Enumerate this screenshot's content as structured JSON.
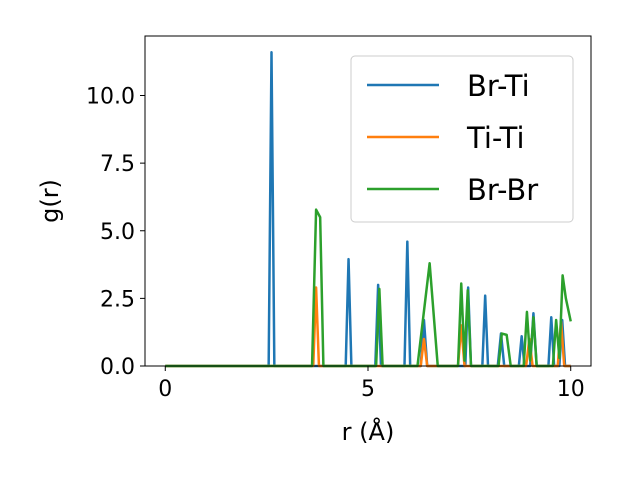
{
  "chart_data": {
    "type": "line",
    "title": "",
    "xlabel": "r (Å)",
    "ylabel": "g(r)",
    "xlim": [
      -0.5,
      10.5
    ],
    "ylim": [
      0,
      12.2
    ],
    "xticks": [
      0,
      5,
      10
    ],
    "xtick_labels": [
      "0",
      "5",
      "10"
    ],
    "yticks": [
      0.0,
      2.5,
      5.0,
      7.5,
      10.0
    ],
    "ytick_labels": [
      "0.0",
      "2.5",
      "5.0",
      "7.5",
      "10.0"
    ],
    "grid": false,
    "legend_position": "top-right",
    "series": [
      {
        "name": "Br-Ti",
        "color": "#1f77b4",
        "x": [
          0,
          2.55,
          2.62,
          2.69,
          4.45,
          4.52,
          4.59,
          5.18,
          5.25,
          5.32,
          5.9,
          5.97,
          6.04,
          6.3,
          6.38,
          6.46,
          7.4,
          7.47,
          7.54,
          7.82,
          7.89,
          7.96,
          8.2,
          8.28,
          8.36,
          8.72,
          8.79,
          8.86,
          9.0,
          9.08,
          9.16,
          9.45,
          9.52,
          9.59,
          9.72,
          9.79,
          9.86,
          10.0
        ],
        "y": [
          0,
          0,
          11.6,
          0,
          0,
          3.95,
          0,
          0,
          3.0,
          0,
          0,
          4.6,
          0,
          0,
          1.7,
          0,
          0,
          2.9,
          0,
          0,
          2.6,
          0,
          0,
          1.2,
          0,
          0,
          1.1,
          0,
          0,
          1.95,
          0,
          0,
          1.8,
          0,
          0,
          1.7,
          0,
          0
        ]
      },
      {
        "name": "Ti-Ti",
        "color": "#ff7f0e",
        "x": [
          0,
          3.65,
          3.72,
          3.79,
          6.3,
          6.38,
          6.46,
          7.22,
          7.3,
          7.38,
          8.9,
          8.98,
          9.06,
          9.68,
          9.76,
          9.84,
          10.0
        ],
        "y": [
          0,
          0,
          2.9,
          0,
          0,
          1.0,
          0,
          0,
          1.5,
          0,
          0,
          1.0,
          0,
          0,
          1.65,
          0,
          0
        ]
      },
      {
        "name": "Br-Br",
        "color": "#2ca02c",
        "x": [
          0,
          3.62,
          3.72,
          3.82,
          3.9,
          5.2,
          5.28,
          5.36,
          6.22,
          6.52,
          6.72,
          7.22,
          7.3,
          7.38,
          7.46,
          7.54,
          8.22,
          8.3,
          8.42,
          8.52,
          8.62,
          8.84,
          8.92,
          9.0,
          9.08,
          9.16,
          9.56,
          9.64,
          9.72,
          9.8,
          9.88,
          10.0
        ],
        "y": [
          0,
          0,
          5.78,
          5.5,
          0,
          0,
          2.85,
          0,
          0,
          3.8,
          0,
          0,
          3.05,
          0.2,
          2.8,
          0,
          0,
          1.2,
          1.15,
          0,
          0,
          0,
          2.0,
          0.2,
          1.8,
          0,
          0,
          1.7,
          0.3,
          3.35,
          2.5,
          1.65
        ]
      }
    ]
  }
}
